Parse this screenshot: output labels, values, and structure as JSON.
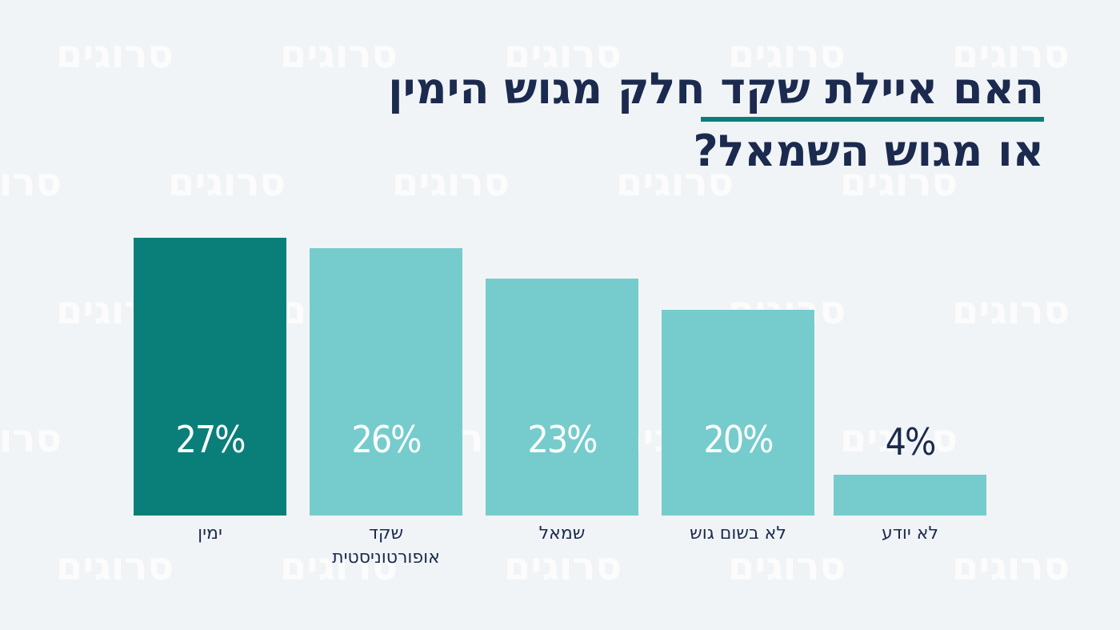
{
  "chart_data": {
    "type": "bar",
    "title": "האם איילת שקד חלק מגוש הימין\nאו מגוש השמאל?",
    "watermark": "סרוגים",
    "categories": [
      "ימין",
      "שקד\nאופורטוניסטית",
      "שמאל",
      "לא בשום גוש",
      "לא יודע"
    ],
    "values": [
      27,
      26,
      23,
      20,
      4
    ],
    "value_labels": [
      "27%",
      "26%",
      "23%",
      "20%",
      "4%"
    ],
    "colors": [
      "#0a7f7a",
      "#76cccc",
      "#76cccc",
      "#76cccc",
      "#76cccc"
    ]
  }
}
